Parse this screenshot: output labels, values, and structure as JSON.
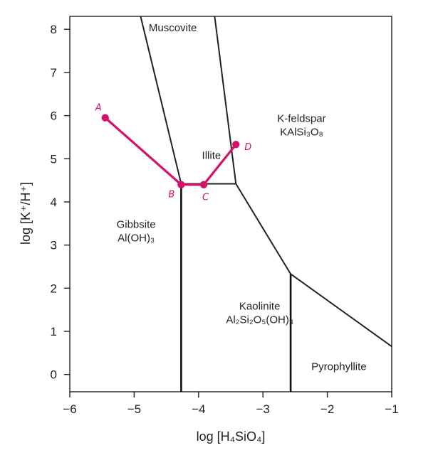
{
  "chart_data": {
    "type": "line",
    "title": "",
    "xlabel": "log [H₄SiO₄]",
    "ylabel": "log [K⁺/H⁺]",
    "xlim": [
      -6,
      -1
    ],
    "ylim": [
      -0.4,
      8.3
    ],
    "x_ticks": [
      {
        "value": -6,
        "label": "−6"
      },
      {
        "value": -5,
        "label": "−5"
      },
      {
        "value": -4,
        "label": "−4"
      },
      {
        "value": -3,
        "label": "−3"
      },
      {
        "value": -2,
        "label": "−2"
      },
      {
        "value": -1,
        "label": "−1"
      }
    ],
    "y_ticks": [
      {
        "value": 0,
        "label": "0"
      },
      {
        "value": 1,
        "label": "1"
      },
      {
        "value": 2,
        "label": "2"
      },
      {
        "value": 3,
        "label": "3"
      },
      {
        "value": 4,
        "label": "4"
      },
      {
        "value": 5,
        "label": "5"
      },
      {
        "value": 6,
        "label": "6"
      },
      {
        "value": 7,
        "label": "7"
      },
      {
        "value": 8,
        "label": "8"
      }
    ],
    "grid": false,
    "boundaries": [
      {
        "name": "muscovite-gibbsite",
        "heavy": false,
        "points": [
          [
            -4.9,
            8.3
          ],
          [
            -4.27,
            4.42
          ]
        ]
      },
      {
        "name": "muscovite-kfeldspar",
        "heavy": false,
        "points": [
          [
            -3.75,
            8.3
          ],
          [
            -3.42,
            4.42
          ]
        ]
      },
      {
        "name": "illite-kaolinite",
        "heavy": false,
        "points": [
          [
            -4.27,
            4.42
          ],
          [
            -3.42,
            4.42
          ]
        ]
      },
      {
        "name": "gibbsite-kaolinite",
        "heavy": true,
        "points": [
          [
            -4.27,
            4.42
          ],
          [
            -4.27,
            -0.4
          ]
        ]
      },
      {
        "name": "kfeldspar-kaolinite",
        "heavy": false,
        "points": [
          [
            -3.42,
            4.42
          ],
          [
            -2.57,
            2.33
          ]
        ]
      },
      {
        "name": "kaolinite-pyrophyllite",
        "heavy": true,
        "points": [
          [
            -2.57,
            2.33
          ],
          [
            -2.57,
            -0.4
          ]
        ]
      },
      {
        "name": "kfeldspar-pyrophyllite",
        "heavy": false,
        "points": [
          [
            -2.57,
            2.33
          ],
          [
            -1.0,
            0.65
          ]
        ]
      }
    ],
    "fields": [
      {
        "id": "muscovite",
        "lines": [
          {
            "text": "Muscovite"
          }
        ],
        "x": -4.4,
        "y": 7.95
      },
      {
        "id": "kfeldspar",
        "lines": [
          {
            "text": "K-feldspar"
          },
          {
            "text": "KAlSi₃O₈"
          }
        ],
        "x": -2.4,
        "y": 5.85
      },
      {
        "id": "illite",
        "lines": [
          {
            "text": "Illite"
          }
        ],
        "x": -3.8,
        "y": 5.0
      },
      {
        "id": "gibbsite",
        "lines": [
          {
            "text": "Gibbsite"
          },
          {
            "text": "Al(OH)₃"
          }
        ],
        "x": -4.97,
        "y": 3.4
      },
      {
        "id": "kaolinite",
        "lines": [
          {
            "text": "Kaolinite"
          },
          {
            "text": "Al₂Si₂O₅(OH)₄"
          }
        ],
        "x": -3.05,
        "y": 1.5
      },
      {
        "id": "pyrophyllite",
        "lines": [
          {
            "text": "Pyrophyllite"
          }
        ],
        "x": -1.82,
        "y": 0.1
      }
    ],
    "series": [
      {
        "color": "#d6116b",
        "points": [
          {
            "label": "A",
            "x": -5.45,
            "y": 5.95
          },
          {
            "label": "B",
            "x": -4.27,
            "y": 4.4
          },
          {
            "label": "C",
            "x": -3.92,
            "y": 4.4
          },
          {
            "label": "D",
            "x": -3.42,
            "y": 5.33
          }
        ]
      }
    ]
  }
}
